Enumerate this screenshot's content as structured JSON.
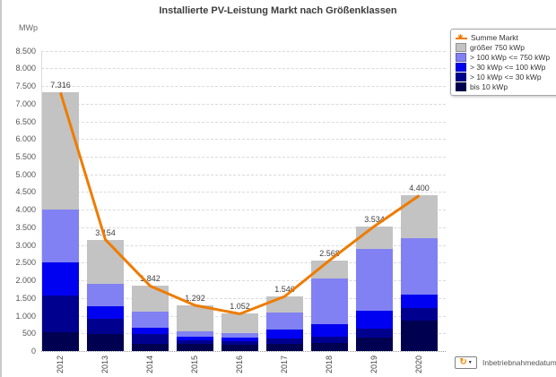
{
  "icons": {
    "legend_line_marker": "✱",
    "cycle": "↻",
    "dropdown": "▼"
  },
  "footer": {
    "label": "Inbetriebnahmedatum"
  },
  "chart_data": {
    "type": "bar",
    "subtype": "stacked-bars-with-total-line",
    "title": "Installierte PV-Leistung Markt nach Größenklassen",
    "ylabel": "MWp",
    "xlabel": "Inbetriebnahmedatum",
    "ylim": [
      0,
      9150
    ],
    "ytick_step": 500,
    "ytick_max": 8500,
    "grid": "horizontal-dashed",
    "legend_position": "top-right",
    "number_format": "de-thousands-dot",
    "categories": [
      "2012",
      "2013",
      "2014",
      "2015",
      "2016",
      "2017",
      "2018",
      "2019",
      "2020"
    ],
    "series": [
      {
        "name": "bis 10 kWp",
        "color": "#000050",
        "values": [
          540,
          490,
          210,
          200,
          180,
          210,
          230,
          390,
          850
        ]
      },
      {
        "name": "> 10 kWp <= 30 kWp",
        "color": "#00008f",
        "values": [
          1030,
          410,
          280,
          100,
          100,
          150,
          180,
          240,
          360
        ]
      },
      {
        "name": "> 30 kWp <= 100 kWp",
        "color": "#0101f1",
        "values": [
          930,
          360,
          180,
          100,
          110,
          260,
          340,
          500,
          390
        ]
      },
      {
        "name": "> 100 kWp <= 750 kWp",
        "color": "#8181f3",
        "values": [
          1500,
          640,
          440,
          160,
          110,
          480,
          1300,
          1770,
          1600
        ]
      },
      {
        "name": "größer 750 kWp",
        "color": "#c3c3c3",
        "values": [
          3316,
          1254,
          732,
          732,
          552,
          446,
          518,
          634,
          1200
        ]
      }
    ],
    "line_series": {
      "name": "Summe Markt",
      "color": "#ee7c00",
      "values": [
        7316,
        3154,
        1842,
        1292,
        1052,
        1546,
        2568,
        3534,
        4400
      ]
    },
    "point_labels": [
      "7.316",
      "3.154",
      "1.842",
      "1.292",
      "1.052",
      "1.546",
      "2.568",
      "3.534",
      "4.400"
    ]
  }
}
